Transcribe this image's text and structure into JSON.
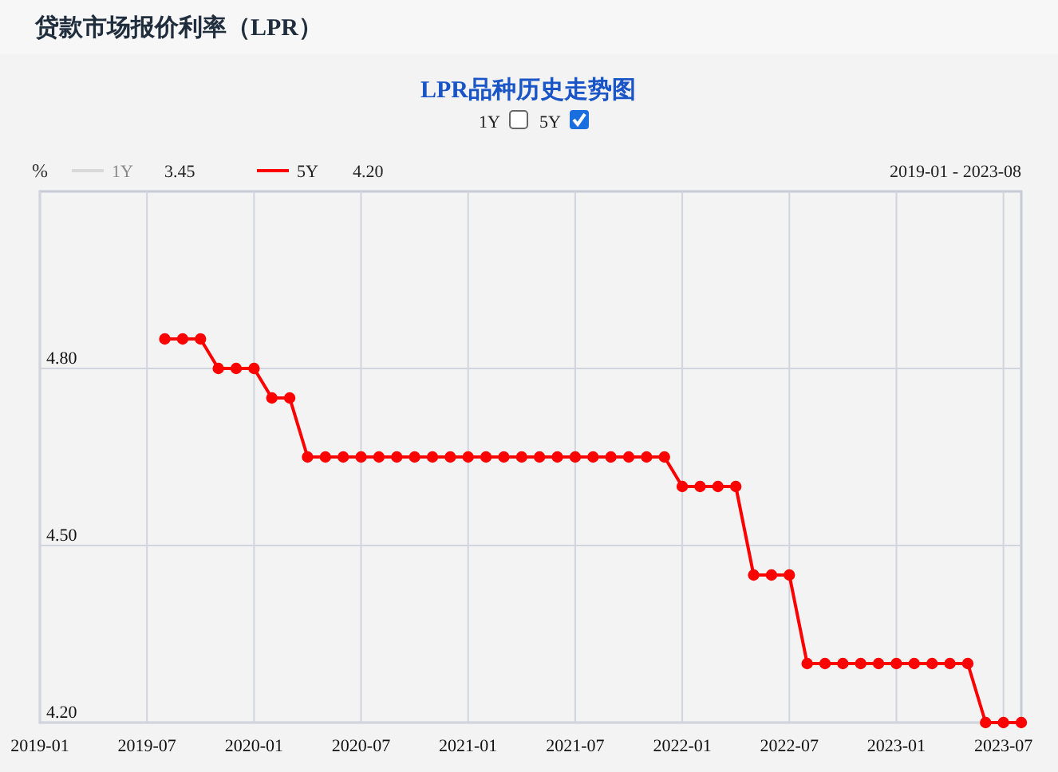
{
  "chart_data": {
    "type": "line",
    "title": "贷款市场报价利率（LPR）",
    "subtitle": "LPR品种历史走势图",
    "ylabel": "%",
    "x": [
      "2019-08",
      "2019-09",
      "2019-10",
      "2019-11",
      "2019-12",
      "2020-01",
      "2020-02",
      "2020-03",
      "2020-04",
      "2020-05",
      "2020-06",
      "2020-07",
      "2020-08",
      "2020-09",
      "2020-10",
      "2020-11",
      "2020-12",
      "2021-01",
      "2021-02",
      "2021-03",
      "2021-04",
      "2021-05",
      "2021-06",
      "2021-07",
      "2021-08",
      "2021-09",
      "2021-10",
      "2021-11",
      "2021-12",
      "2022-01",
      "2022-02",
      "2022-03",
      "2022-04",
      "2022-05",
      "2022-06",
      "2022-07",
      "2022-08",
      "2022-09",
      "2022-10",
      "2022-11",
      "2022-12",
      "2023-01",
      "2023-02",
      "2023-03",
      "2023-04",
      "2023-05",
      "2023-06",
      "2023-07",
      "2023-08"
    ],
    "series": [
      {
        "name": "1Y",
        "color": "#d9d9d9",
        "values": [
          null,
          null,
          null,
          null,
          null,
          null,
          null,
          null,
          null,
          null,
          null,
          null,
          null,
          null,
          null,
          null,
          null,
          null,
          null,
          null,
          null,
          null,
          null,
          null,
          null,
          null,
          null,
          null,
          null,
          null,
          null,
          null,
          null,
          null,
          null,
          null,
          null,
          null,
          null,
          null,
          null,
          null,
          null,
          null,
          null,
          null,
          null,
          null,
          null
        ]
      },
      {
        "name": "5Y",
        "color": "#ff0000",
        "values": [
          4.85,
          4.85,
          4.85,
          4.8,
          4.8,
          4.8,
          4.75,
          4.75,
          4.65,
          4.65,
          4.65,
          4.65,
          4.65,
          4.65,
          4.65,
          4.65,
          4.65,
          4.65,
          4.65,
          4.65,
          4.65,
          4.65,
          4.65,
          4.65,
          4.65,
          4.65,
          4.65,
          4.65,
          4.65,
          4.6,
          4.6,
          4.6,
          4.6,
          4.45,
          4.45,
          4.45,
          4.3,
          4.3,
          4.3,
          4.3,
          4.3,
          4.3,
          4.3,
          4.3,
          4.3,
          4.3,
          4.2,
          4.2,
          4.2
        ]
      }
    ],
    "xlim": [
      "2019-01",
      "2023-08"
    ],
    "xticks": [
      "2019-01",
      "2019-07",
      "2020-01",
      "2020-07",
      "2021-01",
      "2021-07",
      "2022-01",
      "2022-07",
      "2023-01",
      "2023-07"
    ],
    "ylim": [
      4.2,
      5.1
    ],
    "yticks": [
      {
        "value": 4.2,
        "label": "4.20"
      },
      {
        "value": 4.5,
        "label": "4.50"
      },
      {
        "value": 4.8,
        "label": "4.80"
      }
    ],
    "grid": true,
    "legend": "top left",
    "marker": "circle",
    "annotations": [
      "3.45",
      "4.20",
      "2019-01 - 2023-08"
    ]
  }
}
